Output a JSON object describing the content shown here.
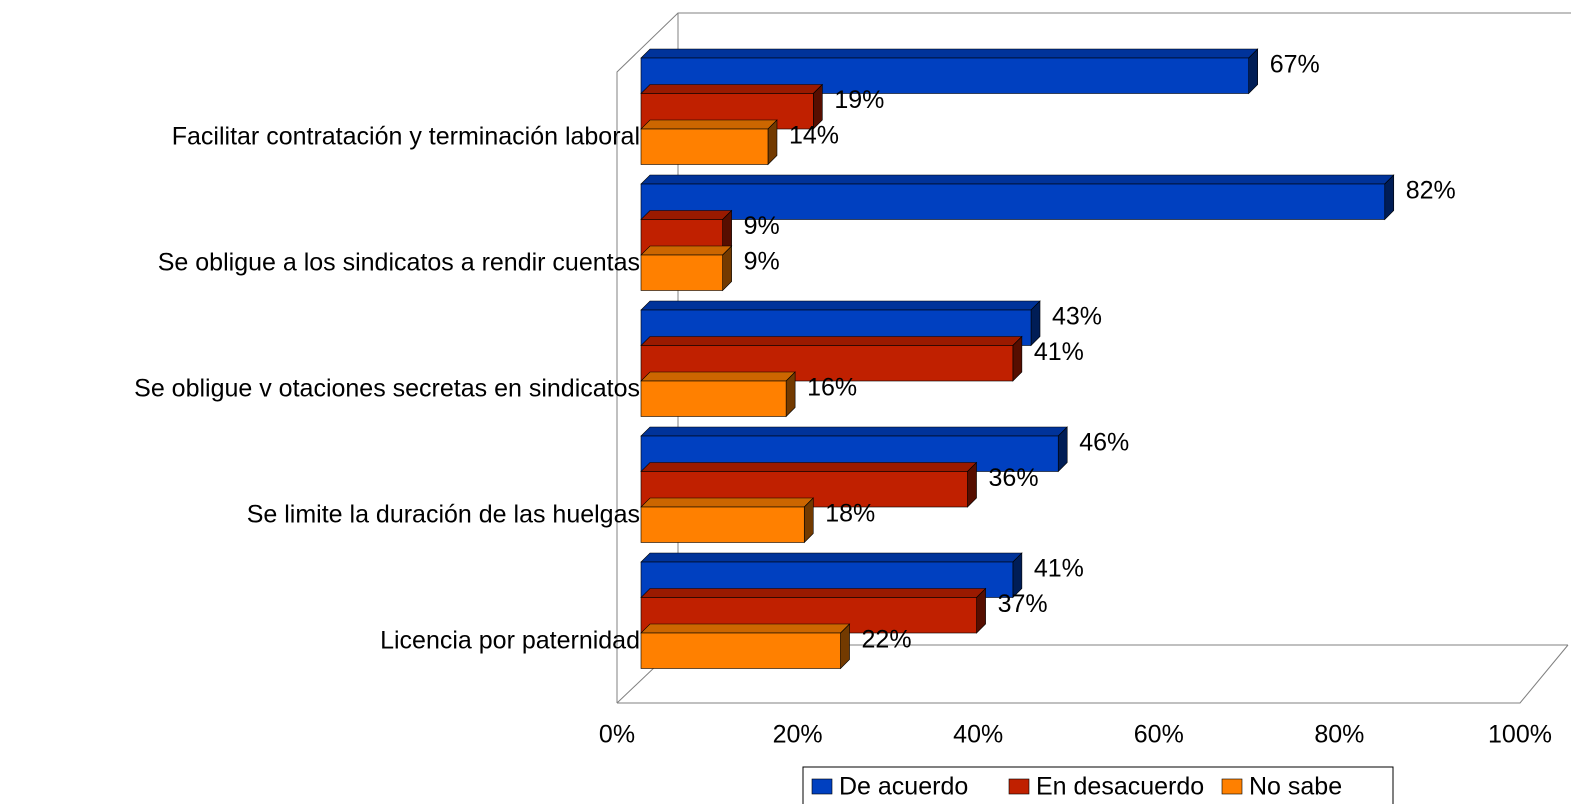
{
  "chart_data": {
    "type": "bar3d_horizontal",
    "categories": [
      "Facilitar contratación y  terminación laboral",
      "Se obligue a los sindicatos a rendir cuentas",
      "Se obligue v otaciones secretas en sindicatos",
      "Se limite la duración de las huelgas",
      "Licencia por paternidad"
    ],
    "series": [
      {
        "name": "De acuerdo",
        "color": "#0040c0",
        "values": [
          67,
          82,
          43,
          46,
          41
        ],
        "value_labels": [
          "67%",
          "82%",
          "43%",
          "46%",
          "41%"
        ]
      },
      {
        "name": "En desacuerdo",
        "color": "#c02000",
        "values": [
          19,
          9,
          41,
          36,
          37
        ],
        "value_labels": [
          "19%",
          "9%",
          "41%",
          "36%",
          "37%"
        ]
      },
      {
        "name": "No sabe",
        "color": "#ff8000",
        "values": [
          14,
          9,
          16,
          18,
          22
        ],
        "value_labels": [
          "14%",
          "9%",
          "16%",
          "18%",
          "22%"
        ]
      }
    ],
    "xlim": [
      0,
      100
    ],
    "xticks": [
      {
        "value": 0,
        "label": "0%"
      },
      {
        "value": 20,
        "label": "20%"
      },
      {
        "value": 40,
        "label": "40%"
      },
      {
        "value": 60,
        "label": "60%"
      },
      {
        "value": 80,
        "label": "80%"
      },
      {
        "value": 100,
        "label": "100%"
      }
    ],
    "legend": "bottom"
  }
}
